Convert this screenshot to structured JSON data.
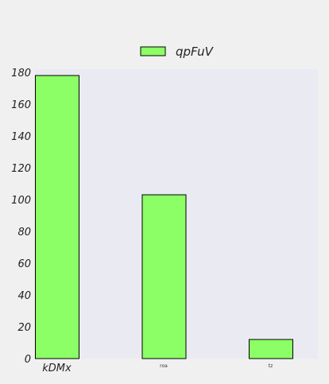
{
  "chart_data": {
    "type": "bar",
    "title": "",
    "xlabel": "",
    "ylabel": "",
    "categories": [
      "kDMx",
      "roa",
      "tz"
    ],
    "series": [
      {
        "name": "qpFuV",
        "values": [
          178,
          103,
          12
        ],
        "color": "#8cff66"
      }
    ],
    "ylim": [
      0,
      180
    ],
    "yticks": [
      0,
      20,
      40,
      60,
      80,
      100,
      120,
      140,
      160,
      180
    ],
    "grid": false,
    "legend": "top-center",
    "colors": {
      "plot_background": "#eaeaf2",
      "page_background": "#f0f0f0",
      "bar_edge": "#000000"
    }
  }
}
